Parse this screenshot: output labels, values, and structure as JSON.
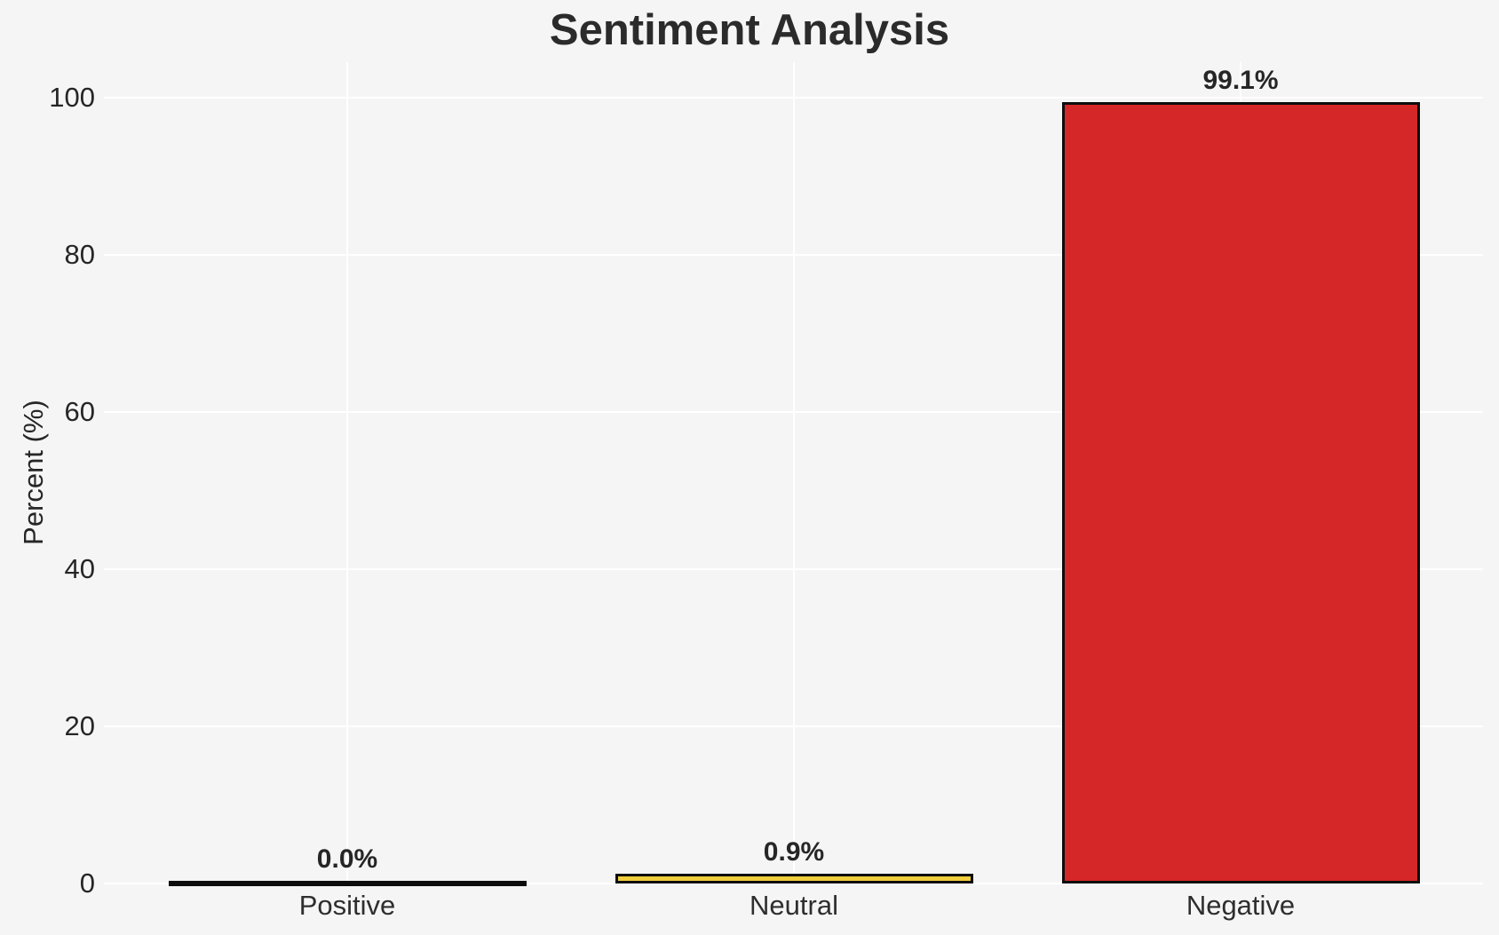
{
  "chart_data": {
    "type": "bar",
    "title": "Sentiment Analysis",
    "xlabel": "",
    "ylabel": "Percent (%)",
    "categories": [
      "Positive",
      "Neutral",
      "Negative"
    ],
    "values": [
      0.0,
      0.9,
      99.1
    ],
    "bars": [
      {
        "category": "Positive",
        "value": 0.0,
        "label": "0.0%",
        "fill": "transparent"
      },
      {
        "category": "Neutral",
        "value": 0.9,
        "label": "0.9%",
        "fill": "#f0cd3c"
      },
      {
        "category": "Negative",
        "value": 99.1,
        "label": "99.1%",
        "fill": "#d62728"
      }
    ],
    "yticks": [
      0,
      20,
      40,
      60,
      80,
      100
    ],
    "ylim": [
      0,
      104.5
    ],
    "grid": "both",
    "legend": "none",
    "colors": {
      "bar_edge": "#0d0d0d",
      "background": "#f5f5f6",
      "gridline": "#ffffff",
      "text": "#262626"
    }
  }
}
